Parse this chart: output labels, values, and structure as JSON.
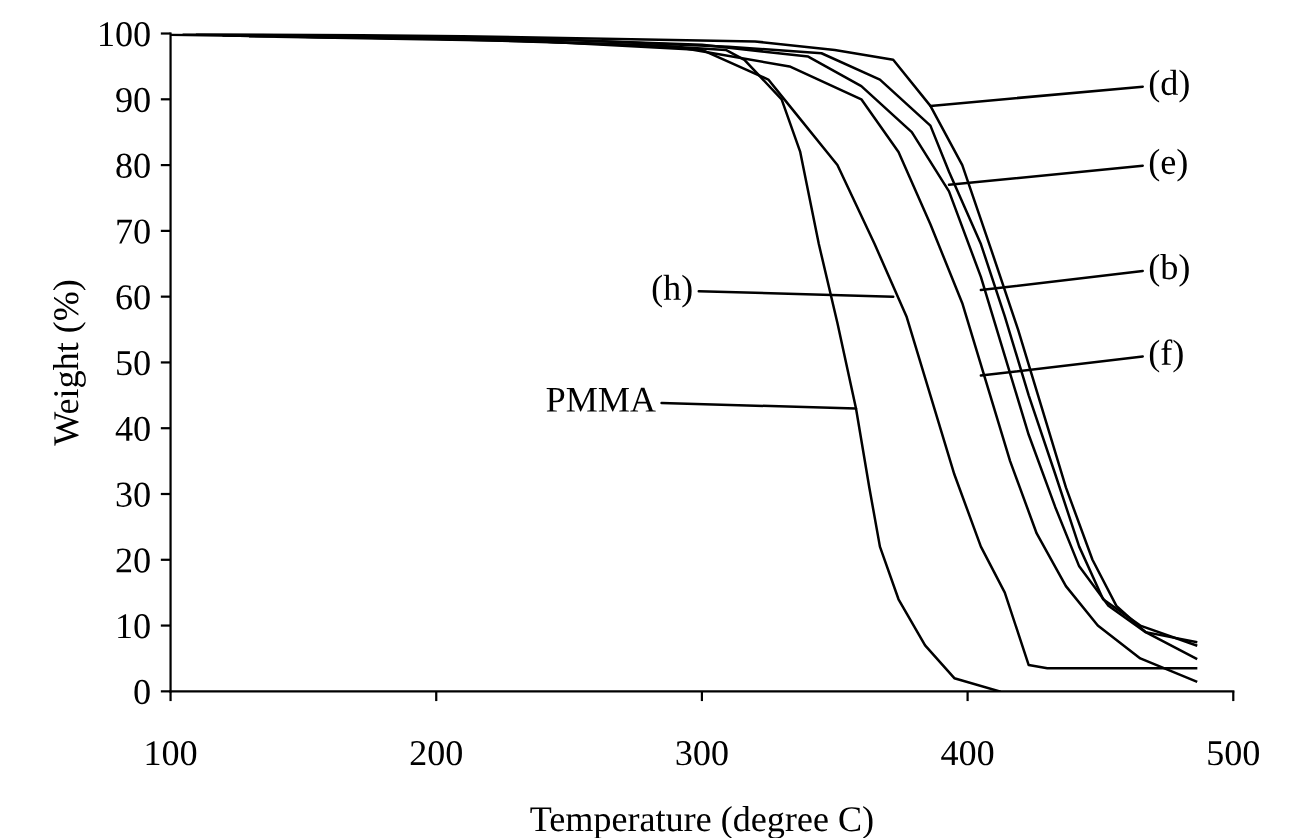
{
  "chart_data": {
    "type": "line",
    "xlabel": "Temperature (degree C)",
    "ylabel": "Weight (%)",
    "xlim": [
      100,
      500
    ],
    "ylim": [
      0,
      100
    ],
    "xticks": [
      100,
      200,
      300,
      400,
      500
    ],
    "yticks": [
      0,
      10,
      20,
      30,
      40,
      50,
      60,
      70,
      80,
      90,
      100
    ],
    "grid": false,
    "legend": false,
    "marker": "none",
    "line_style": "solid",
    "series": [
      {
        "color": "#000000",
        "x": [
          100,
          200,
          280,
          309,
          316,
          330,
          337,
          344,
          351,
          358,
          363,
          367,
          374,
          384,
          395,
          412
        ],
        "values": [
          99.8,
          99.2,
          98.2,
          97.5,
          96,
          90,
          82,
          68,
          56,
          43,
          31,
          22,
          14,
          7,
          2,
          0
        ]
      },
      {
        "color": "#000000",
        "x": [
          140,
          240,
          300,
          325,
          333,
          351,
          365,
          377,
          386,
          395,
          405,
          414,
          423,
          430,
          486
        ],
        "values": [
          99.5,
          98.8,
          97.5,
          93,
          89,
          80,
          68,
          57,
          45,
          33,
          22,
          15,
          4,
          3.5,
          3.5
        ]
      },
      {
        "color": "#000000",
        "x": [
          120,
          220,
          290,
          333,
          360,
          374,
          386,
          398,
          407,
          416,
          426,
          437,
          449,
          465,
          486
        ],
        "values": [
          99.7,
          99.1,
          98,
          95,
          90,
          82,
          71,
          59,
          47,
          35,
          24,
          16,
          10,
          5,
          1.5
        ]
      },
      {
        "color": "#000000",
        "x": [
          110,
          230,
          300,
          340,
          360,
          379,
          393,
          405,
          414,
          423,
          433,
          442,
          453,
          467,
          486
        ],
        "values": [
          99.9,
          99.3,
          98.3,
          96.5,
          92,
          85,
          76,
          63,
          51,
          39,
          28,
          19,
          13,
          9,
          5
        ]
      },
      {
        "color": "#000000",
        "x": [
          130,
          250,
          310,
          345,
          367,
          386,
          393,
          405,
          414,
          423,
          433,
          442,
          451,
          465,
          486
        ],
        "values": [
          99.6,
          99.0,
          98.0,
          97,
          93,
          86,
          79,
          68,
          57,
          45,
          33,
          22,
          14,
          10,
          7
        ]
      },
      {
        "color": "#000000",
        "x": [
          105,
          210,
          320,
          350,
          372,
          386,
          398,
          409,
          419,
          428,
          437,
          447,
          456,
          467,
          486
        ],
        "values": [
          100,
          99.6,
          98.8,
          97.5,
          96,
          89,
          80,
          67,
          55,
          43,
          31,
          20,
          13,
          9,
          7.5
        ]
      }
    ],
    "annotations": [
      {
        "text": "PMMA",
        "x": 358,
        "y": 43
      },
      {
        "text": "(h)",
        "x": 372,
        "y": 60
      },
      {
        "text": "(f)",
        "x": 405,
        "y": 48
      },
      {
        "text": "(b)",
        "x": 405,
        "y": 61
      },
      {
        "text": "(e)",
        "x": 393,
        "y": 77
      },
      {
        "text": "(d)",
        "x": 386,
        "y": 89
      }
    ]
  }
}
